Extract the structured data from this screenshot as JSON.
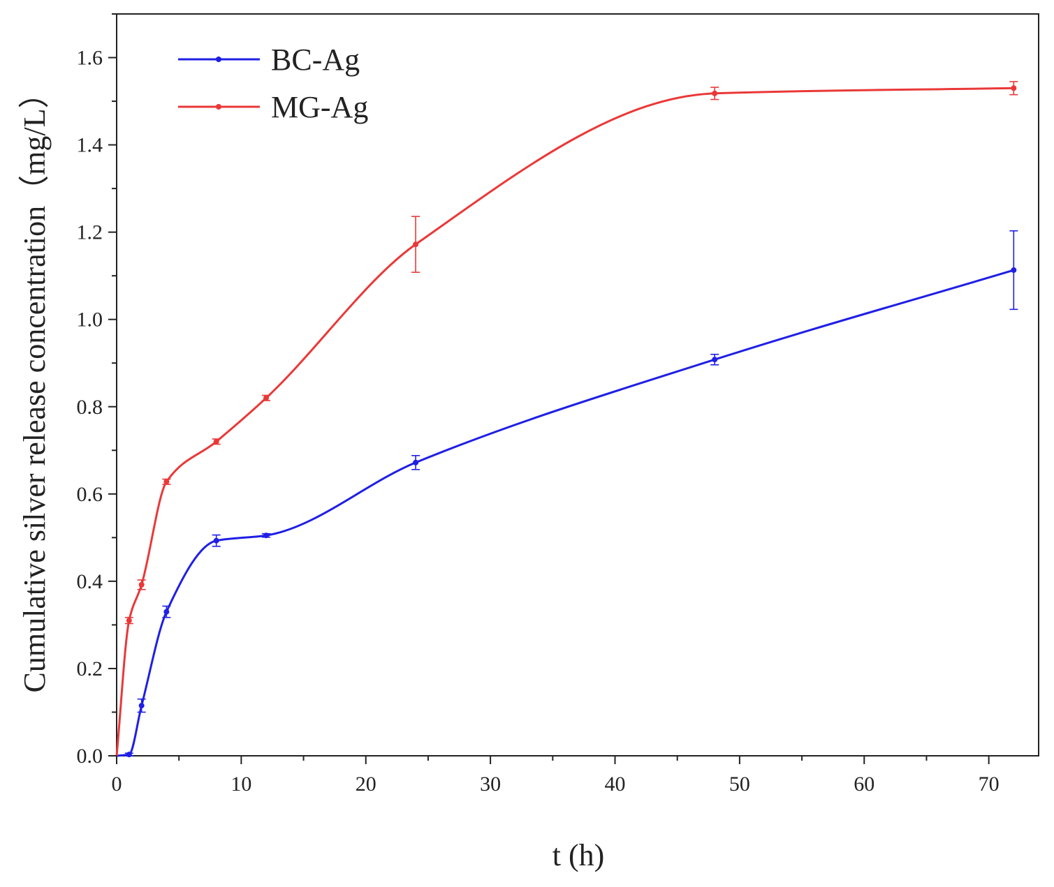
{
  "chart_data": {
    "type": "line",
    "xlabel": "t (h)",
    "ylabel": "Cumulative silver release concentration（mg/L）",
    "xlim": [
      0,
      74
    ],
    "ylim": [
      0,
      1.7
    ],
    "x_ticks": [
      0,
      10,
      20,
      30,
      40,
      50,
      60,
      70
    ],
    "y_ticks": [
      0.0,
      0.2,
      0.4,
      0.6,
      0.8,
      1.0,
      1.2,
      1.4,
      1.6
    ],
    "x_tick_labels": [
      "0",
      "10",
      "20",
      "30",
      "40",
      "50",
      "60",
      "70"
    ],
    "y_tick_labels": [
      "0.0",
      "0.2",
      "0.4",
      "0.6",
      "0.8",
      "1.0",
      "1.2",
      "1.4",
      "1.6"
    ],
    "grid": false,
    "legend_position": "top-left",
    "series": [
      {
        "name": "BC-Ag",
        "color": "#1f1fe6",
        "x": [
          1,
          2,
          4,
          8,
          12,
          24,
          48,
          72
        ],
        "y": [
          0.003,
          0.115,
          0.33,
          0.493,
          0.505,
          0.672,
          0.908,
          1.113
        ],
        "error": [
          0.003,
          0.015,
          0.013,
          0.013,
          0.004,
          0.016,
          0.012,
          0.09
        ]
      },
      {
        "name": "MG-Ag",
        "color": "#ea3838",
        "x": [
          1,
          2,
          4,
          8,
          12,
          24,
          48,
          72
        ],
        "y": [
          0.31,
          0.392,
          0.628,
          0.72,
          0.82,
          1.172,
          1.518,
          1.53
        ],
        "error": [
          0.007,
          0.011,
          0.006,
          0.006,
          0.006,
          0.064,
          0.014,
          0.015
        ]
      }
    ]
  }
}
